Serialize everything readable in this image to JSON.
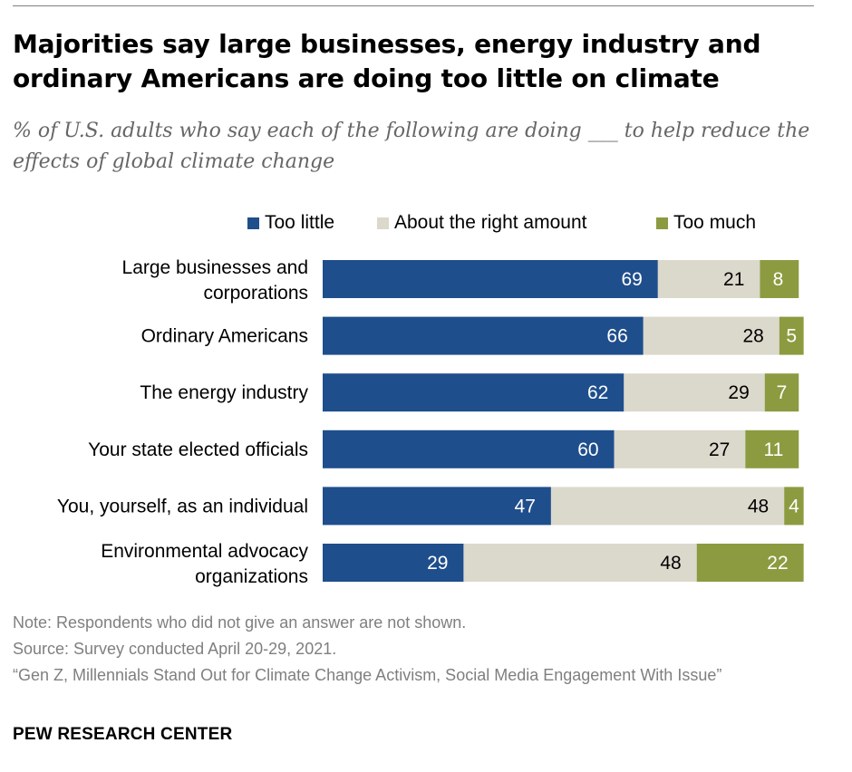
{
  "title": "Majorities say large businesses, energy industry and ordinary Americans are doing too little on climate",
  "subtitle": "% of U.S. adults who say each of the following are doing ___ to help reduce the effects of global climate change",
  "chart_data": {
    "type": "bar",
    "orientation": "horizontal",
    "stacked": true,
    "categories": [
      "Large businesses and corporations",
      "Ordinary Americans",
      "The energy industry",
      "Your state elected officials",
      "You, yourself, as an individual",
      "Environmental advocacy organizations"
    ],
    "series": [
      {
        "name": "Too little",
        "color": "#1f4e8c",
        "label_color": "#ffffff",
        "values": [
          69,
          66,
          62,
          60,
          47,
          29
        ]
      },
      {
        "name": "About the right amount",
        "color": "#dbd8cc",
        "label_color": "#000000",
        "values": [
          21,
          28,
          29,
          27,
          48,
          48
        ]
      },
      {
        "name": "Too much",
        "color": "#8c9b40",
        "label_color": "#ffffff",
        "values": [
          8,
          5,
          7,
          11,
          4,
          22
        ]
      }
    ],
    "xlim": [
      0,
      100
    ],
    "grid": false,
    "legend_position": "top"
  },
  "footer": {
    "note": "Note: Respondents who did not give an answer are not shown.",
    "source": "Source: Survey conducted April 20-29, 2021.",
    "report": "“Gen Z, Millennials Stand Out for Climate Change Activism, Social Media Engagement With Issue”",
    "organization": "PEW RESEARCH CENTER"
  }
}
